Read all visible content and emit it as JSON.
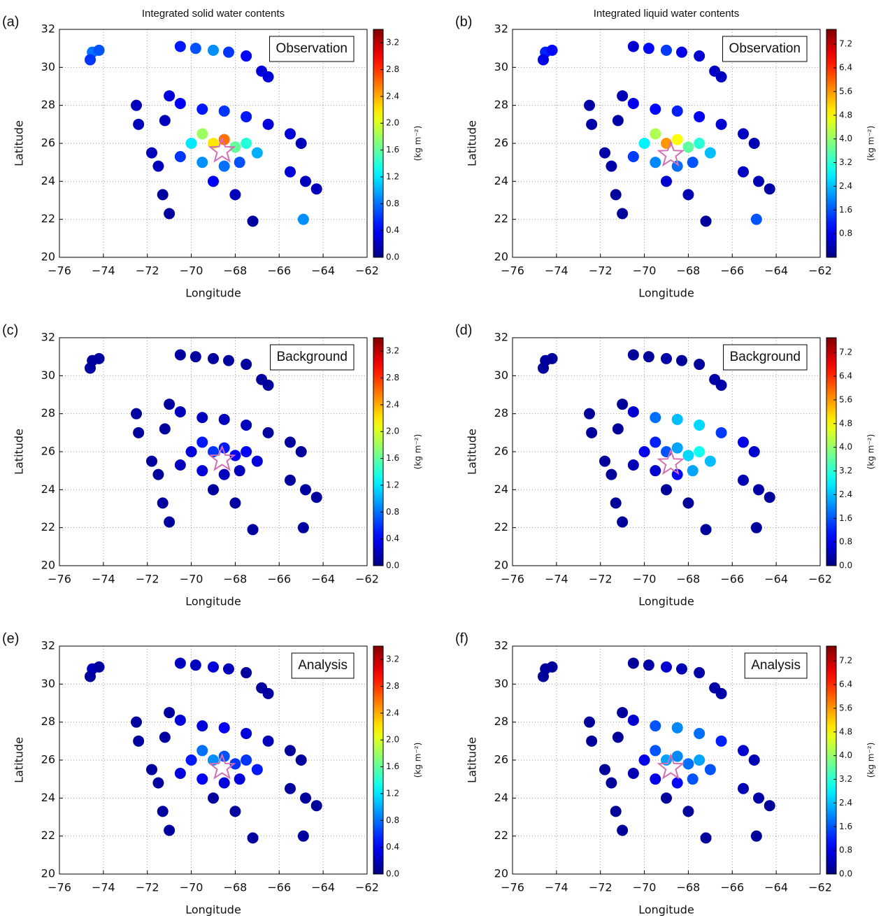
{
  "chart_data": [
    {
      "type": "scatter",
      "panel": "(a)",
      "title": "Integrated solid water contents",
      "annotation": "Observation",
      "xlabel": "Longitude",
      "ylabel": "Latitude",
      "colorbar_label": "(kg m⁻²)",
      "colormap": "jet",
      "grid": true,
      "xlim": [
        -76,
        -62
      ],
      "ylim": [
        20,
        32
      ],
      "xticks": [
        {
          "value": -76,
          "label": "−76"
        },
        {
          "value": -74,
          "label": "−74"
        },
        {
          "value": -72,
          "label": "−72"
        },
        {
          "value": -70,
          "label": "−70"
        },
        {
          "value": -68,
          "label": "−68"
        },
        {
          "value": -66,
          "label": "−66"
        },
        {
          "value": -64,
          "label": "−64"
        },
        {
          "value": -62,
          "label": "−62"
        }
      ],
      "yticks": [
        20,
        22,
        24,
        26,
        28,
        30,
        32
      ],
      "clim": [
        0,
        3.4
      ],
      "cticks": [
        {
          "value": 0,
          "label": "0.0"
        },
        0.4,
        0.8,
        1.2,
        1.6,
        {
          "value": 2,
          "label": "2.0"
        },
        2.4,
        2.8,
        3.2
      ],
      "center": {
        "x": -68.6,
        "y": 25.6
      },
      "x": [
        -74.5,
        -74.2,
        -74.6,
        -70.5,
        -69.8,
        -69.0,
        -68.3,
        -67.5,
        -66.8,
        -66.5,
        -72.5,
        -72.4,
        -71.0,
        -71.2,
        -71.8,
        -71.5,
        -70.5,
        -69.5,
        -68.5,
        -67.5,
        -66.5,
        -65.5,
        -65.0,
        -70.0,
        -69.5,
        -69.0,
        -68.5,
        -68.0,
        -67.5,
        -67.0,
        -69.5,
        -68.5,
        -67.8,
        -70.5,
        -69.0,
        -68.0,
        -65.5,
        -64.8,
        -64.3,
        -71.3,
        -71.0,
        -64.9,
        -67.2
      ],
      "y": [
        30.8,
        30.9,
        30.4,
        31.1,
        31.0,
        30.9,
        30.8,
        30.6,
        29.8,
        29.5,
        28.0,
        27.0,
        28.5,
        27.2,
        25.5,
        24.8,
        28.1,
        27.8,
        27.7,
        27.4,
        27.0,
        26.5,
        26.0,
        26.0,
        26.5,
        26.0,
        26.2,
        25.8,
        26.0,
        25.5,
        25.0,
        24.8,
        25.0,
        25.3,
        24.0,
        23.3,
        24.5,
        24.0,
        23.6,
        23.3,
        22.3,
        22.0,
        21.9
      ],
      "values": [
        0.8,
        0.7,
        0.6,
        0.5,
        0.7,
        0.9,
        0.6,
        0.4,
        0.3,
        0.3,
        0.2,
        0.2,
        0.3,
        0.2,
        0.2,
        0.2,
        0.4,
        0.5,
        0.6,
        0.5,
        0.3,
        0.3,
        0.2,
        1.2,
        1.8,
        2.2,
        2.6,
        1.6,
        1.4,
        1.0,
        0.9,
        0.8,
        0.7,
        0.6,
        0.4,
        0.2,
        0.3,
        0.2,
        0.2,
        0.1,
        0.1,
        0.9,
        0.1
      ]
    },
    {
      "type": "scatter",
      "panel": "(b)",
      "title": "Integrated liquid water contents",
      "annotation": "Observation",
      "xlabel": "Longitude",
      "ylabel": "Latitude",
      "colorbar_label": "(kg m⁻²)",
      "colormap": "jet",
      "grid": true,
      "xlim": [
        -76,
        -62
      ],
      "ylim": [
        20,
        32
      ],
      "xticks": [
        {
          "value": -76,
          "label": "−76"
        },
        {
          "value": -74,
          "label": "−74"
        },
        {
          "value": -72,
          "label": "−72"
        },
        {
          "value": -70,
          "label": "−70"
        },
        {
          "value": -68,
          "label": "−68"
        },
        {
          "value": -66,
          "label": "−66"
        },
        {
          "value": -64,
          "label": "−64"
        },
        {
          "value": -62,
          "label": "−62"
        }
      ],
      "yticks": [
        20,
        22,
        24,
        26,
        28,
        30,
        32
      ],
      "clim": [
        0,
        7.7
      ],
      "cticks": [
        0.8,
        1.6,
        2.4,
        3.2,
        {
          "value": 4,
          "label": "4.0"
        },
        4.8,
        5.6,
        6.4,
        7.2
      ],
      "center": {
        "x": -68.8,
        "y": 25.4
      },
      "x": [
        -74.5,
        -74.2,
        -74.6,
        -70.5,
        -69.8,
        -69.0,
        -68.3,
        -67.5,
        -66.8,
        -66.5,
        -72.5,
        -72.4,
        -71.0,
        -71.2,
        -71.8,
        -71.5,
        -70.5,
        -69.5,
        -68.5,
        -67.5,
        -66.5,
        -65.5,
        -65.0,
        -70.0,
        -69.5,
        -69.0,
        -68.5,
        -68.0,
        -67.5,
        -67.0,
        -69.5,
        -68.5,
        -67.8,
        -70.5,
        -69.0,
        -68.0,
        -65.5,
        -64.8,
        -64.3,
        -71.3,
        -71.0,
        -64.9,
        -67.2
      ],
      "y": [
        30.8,
        30.9,
        30.4,
        31.1,
        31.0,
        30.9,
        30.8,
        30.6,
        29.8,
        29.5,
        28.0,
        27.0,
        28.5,
        27.2,
        25.5,
        24.8,
        28.1,
        27.8,
        27.7,
        27.4,
        27.0,
        26.5,
        26.0,
        26.0,
        26.5,
        26.0,
        26.2,
        25.8,
        26.0,
        25.5,
        25.0,
        24.8,
        25.0,
        25.3,
        24.0,
        23.3,
        24.5,
        24.0,
        23.6,
        23.3,
        22.3,
        22.0,
        21.9
      ],
      "values": [
        1.2,
        1.0,
        0.8,
        0.6,
        1.0,
        1.4,
        0.8,
        0.6,
        0.5,
        0.5,
        0.3,
        0.3,
        0.4,
        0.3,
        0.3,
        0.3,
        0.8,
        1.0,
        1.2,
        0.9,
        0.6,
        0.5,
        0.4,
        2.8,
        4.2,
        5.6,
        4.8,
        3.6,
        3.2,
        2.4,
        2.0,
        1.8,
        1.6,
        1.4,
        0.6,
        0.4,
        0.5,
        0.4,
        0.3,
        0.2,
        0.2,
        1.6,
        0.2
      ]
    },
    {
      "type": "scatter",
      "panel": "(c)",
      "annotation": "Background",
      "xlabel": "Longitude",
      "ylabel": "Latitude",
      "colorbar_label": "(kg m⁻²)",
      "colormap": "jet",
      "grid": true,
      "xlim": [
        -76,
        -62
      ],
      "ylim": [
        20,
        32
      ],
      "xticks": [
        {
          "value": -76,
          "label": "−76"
        },
        {
          "value": -74,
          "label": "−74"
        },
        {
          "value": -72,
          "label": "−72"
        },
        {
          "value": -70,
          "label": "−70"
        },
        {
          "value": -68,
          "label": "−68"
        },
        {
          "value": -66,
          "label": "−66"
        },
        {
          "value": -64,
          "label": "−64"
        },
        {
          "value": -62,
          "label": "−62"
        }
      ],
      "yticks": [
        20,
        22,
        24,
        26,
        28,
        30,
        32
      ],
      "clim": [
        0,
        3.4
      ],
      "cticks": [
        {
          "value": 0,
          "label": "0.0"
        },
        0.4,
        0.8,
        1.2,
        1.6,
        {
          "value": 2,
          "label": "2.0"
        },
        2.4,
        2.8,
        3.2
      ],
      "center": {
        "x": -68.6,
        "y": 25.6
      },
      "x": [
        -74.5,
        -74.2,
        -74.6,
        -70.5,
        -69.8,
        -69.0,
        -68.3,
        -67.5,
        -66.8,
        -66.5,
        -72.5,
        -72.4,
        -71.0,
        -71.2,
        -71.8,
        -71.5,
        -70.5,
        -69.5,
        -68.5,
        -67.5,
        -66.5,
        -65.5,
        -65.0,
        -70.0,
        -69.5,
        -69.0,
        -68.5,
        -68.0,
        -67.5,
        -67.0,
        -69.5,
        -68.5,
        -67.8,
        -70.5,
        -69.0,
        -68.0,
        -65.5,
        -64.8,
        -64.3,
        -71.3,
        -71.0,
        -64.9,
        -67.2
      ],
      "y": [
        30.8,
        30.9,
        30.4,
        31.1,
        31.0,
        30.9,
        30.8,
        30.6,
        29.8,
        29.5,
        28.0,
        27.0,
        28.5,
        27.2,
        25.5,
        24.8,
        28.1,
        27.8,
        27.7,
        27.4,
        27.0,
        26.5,
        26.0,
        26.0,
        26.5,
        26.0,
        26.2,
        25.8,
        26.0,
        25.5,
        25.0,
        24.8,
        25.0,
        25.3,
        24.0,
        23.3,
        24.5,
        24.0,
        23.6,
        23.3,
        22.3,
        22.0,
        21.9
      ],
      "values": [
        0.1,
        0.1,
        0.1,
        0.1,
        0.1,
        0.1,
        0.1,
        0.1,
        0.1,
        0.1,
        0.1,
        0.1,
        0.1,
        0.1,
        0.1,
        0.1,
        0.2,
        0.2,
        0.2,
        0.2,
        0.1,
        0.1,
        0.1,
        0.3,
        0.5,
        0.6,
        0.5,
        0.4,
        0.4,
        0.3,
        0.3,
        0.2,
        0.2,
        0.2,
        0.1,
        0.1,
        0.1,
        0.1,
        0.1,
        0.1,
        0.1,
        0.1,
        0.1
      ]
    },
    {
      "type": "scatter",
      "panel": "(d)",
      "annotation": "Background",
      "xlabel": "Longitude",
      "ylabel": "Latitude",
      "colorbar_label": "(kg m⁻²)",
      "colormap": "jet",
      "grid": true,
      "xlim": [
        -76,
        -62
      ],
      "ylim": [
        20,
        32
      ],
      "xticks": [
        {
          "value": -76,
          "label": "−76"
        },
        {
          "value": -74,
          "label": "−74"
        },
        {
          "value": -72,
          "label": "−72"
        },
        {
          "value": -70,
          "label": "−70"
        },
        {
          "value": -68,
          "label": "−68"
        },
        {
          "value": -66,
          "label": "−66"
        },
        {
          "value": -64,
          "label": "−64"
        },
        {
          "value": -62,
          "label": "−62"
        }
      ],
      "yticks": [
        20,
        22,
        24,
        26,
        28,
        30,
        32
      ],
      "clim": [
        0,
        7.7
      ],
      "cticks": [
        {
          "value": 0,
          "label": "0.0"
        },
        0.8,
        1.6,
        2.4,
        3.2,
        {
          "value": 4,
          "label": "4.0"
        },
        4.8,
        5.6,
        6.4,
        7.2
      ],
      "center": {
        "x": -68.8,
        "y": 25.4
      },
      "x": [
        -74.5,
        -74.2,
        -74.6,
        -70.5,
        -69.8,
        -69.0,
        -68.3,
        -67.5,
        -66.8,
        -66.5,
        -72.5,
        -72.4,
        -71.0,
        -71.2,
        -71.8,
        -71.5,
        -70.5,
        -69.5,
        -68.5,
        -67.5,
        -66.5,
        -65.5,
        -65.0,
        -70.0,
        -69.5,
        -69.0,
        -68.5,
        -68.0,
        -67.5,
        -67.0,
        -69.5,
        -68.5,
        -67.8,
        -70.5,
        -69.0,
        -68.0,
        -65.5,
        -64.8,
        -64.3,
        -71.3,
        -71.0,
        -64.9,
        -67.2
      ],
      "y": [
        30.8,
        30.9,
        30.4,
        31.1,
        31.0,
        30.9,
        30.8,
        30.6,
        29.8,
        29.5,
        28.0,
        27.0,
        28.5,
        27.2,
        25.5,
        24.8,
        28.1,
        27.8,
        27.7,
        27.4,
        27.0,
        26.5,
        26.0,
        26.0,
        26.5,
        26.0,
        26.2,
        25.8,
        26.0,
        25.5,
        25.0,
        24.8,
        25.0,
        25.3,
        24.0,
        23.3,
        24.5,
        24.0,
        23.6,
        23.3,
        22.3,
        22.0,
        21.9
      ],
      "values": [
        0.2,
        0.2,
        0.2,
        0.2,
        0.2,
        0.3,
        0.2,
        0.2,
        0.3,
        0.3,
        0.2,
        0.2,
        0.2,
        0.2,
        0.2,
        0.2,
        0.6,
        1.8,
        2.4,
        2.6,
        1.4,
        0.8,
        0.6,
        0.8,
        1.2,
        1.6,
        2.2,
        2.6,
        3.0,
        2.4,
        0.6,
        1.0,
        2.2,
        0.4,
        0.2,
        0.2,
        0.4,
        0.3,
        0.2,
        0.2,
        0.2,
        0.2,
        0.2
      ]
    },
    {
      "type": "scatter",
      "panel": "(e)",
      "annotation": "Analysis",
      "xlabel": "Longitude",
      "ylabel": "Latitude",
      "colorbar_label": "(kg m⁻²)",
      "colormap": "jet",
      "grid": true,
      "xlim": [
        -76,
        -62
      ],
      "ylim": [
        20,
        32
      ],
      "xticks": [
        {
          "value": -76,
          "label": "−76"
        },
        {
          "value": -74,
          "label": "−74"
        },
        {
          "value": -72,
          "label": "−72"
        },
        {
          "value": -70,
          "label": "−70"
        },
        {
          "value": -68,
          "label": "−68"
        },
        {
          "value": -66,
          "label": "−66"
        },
        {
          "value": -64,
          "label": "−64"
        },
        {
          "value": -62,
          "label": "−62"
        }
      ],
      "yticks": [
        20,
        22,
        24,
        26,
        28,
        30,
        32
      ],
      "clim": [
        0,
        3.4
      ],
      "cticks": [
        {
          "value": 0,
          "label": "0.0"
        },
        0.4,
        0.8,
        1.2,
        1.6,
        {
          "value": 2,
          "label": "2.0"
        },
        2.4,
        2.8,
        3.2
      ],
      "center": {
        "x": -68.6,
        "y": 25.6
      },
      "x": [
        -74.5,
        -74.2,
        -74.6,
        -70.5,
        -69.8,
        -69.0,
        -68.3,
        -67.5,
        -66.8,
        -66.5,
        -72.5,
        -72.4,
        -71.0,
        -71.2,
        -71.8,
        -71.5,
        -70.5,
        -69.5,
        -68.5,
        -67.5,
        -66.5,
        -65.5,
        -65.0,
        -70.0,
        -69.5,
        -69.0,
        -68.5,
        -68.0,
        -67.5,
        -67.0,
        -69.5,
        -68.5,
        -67.8,
        -70.5,
        -69.0,
        -68.0,
        -65.5,
        -64.8,
        -64.3,
        -71.3,
        -71.0,
        -64.9,
        -67.2
      ],
      "y": [
        30.8,
        30.9,
        30.4,
        31.1,
        31.0,
        30.9,
        30.8,
        30.6,
        29.8,
        29.5,
        28.0,
        27.0,
        28.5,
        27.2,
        25.5,
        24.8,
        28.1,
        27.8,
        27.7,
        27.4,
        27.0,
        26.5,
        26.0,
        26.0,
        26.5,
        26.0,
        26.2,
        25.8,
        26.0,
        25.5,
        25.0,
        24.8,
        25.0,
        25.3,
        24.0,
        23.3,
        24.5,
        24.0,
        23.6,
        23.3,
        22.3,
        22.0,
        21.9
      ],
      "values": [
        0.2,
        0.1,
        0.1,
        0.2,
        0.2,
        0.3,
        0.2,
        0.1,
        0.1,
        0.1,
        0.1,
        0.1,
        0.1,
        0.1,
        0.1,
        0.1,
        0.3,
        0.3,
        0.4,
        0.3,
        0.2,
        0.1,
        0.1,
        0.5,
        0.8,
        0.9,
        0.7,
        0.6,
        0.6,
        0.5,
        0.4,
        0.3,
        0.3,
        0.3,
        0.1,
        0.1,
        0.1,
        0.1,
        0.1,
        0.1,
        0.1,
        0.1,
        0.1
      ]
    },
    {
      "type": "scatter",
      "panel": "(f)",
      "annotation": "Analysis",
      "xlabel": "Longitude",
      "ylabel": "Latitude",
      "colorbar_label": "(kg m⁻²)",
      "colormap": "jet",
      "grid": true,
      "xlim": [
        -76,
        -62
      ],
      "ylim": [
        20,
        32
      ],
      "xticks": [
        {
          "value": -76,
          "label": "−76"
        },
        {
          "value": -74,
          "label": "−74"
        },
        {
          "value": -72,
          "label": "−72"
        },
        {
          "value": -70,
          "label": "−70"
        },
        {
          "value": -68,
          "label": "−68"
        },
        {
          "value": -66,
          "label": "−66"
        },
        {
          "value": -64,
          "label": "−64"
        },
        {
          "value": -62,
          "label": "−62"
        }
      ],
      "yticks": [
        20,
        22,
        24,
        26,
        28,
        30,
        32
      ],
      "clim": [
        0,
        7.7
      ],
      "cticks": [
        {
          "value": 0,
          "label": "0.0"
        },
        0.8,
        1.6,
        2.4,
        3.2,
        {
          "value": 4,
          "label": "4.0"
        },
        4.8,
        5.6,
        6.4,
        7.2
      ],
      "center": {
        "x": -68.8,
        "y": 25.6
      },
      "x": [
        -74.5,
        -74.2,
        -74.6,
        -70.5,
        -69.8,
        -69.0,
        -68.3,
        -67.5,
        -66.8,
        -66.5,
        -72.5,
        -72.4,
        -71.0,
        -71.2,
        -71.8,
        -71.5,
        -70.5,
        -69.5,
        -68.5,
        -67.5,
        -66.5,
        -65.5,
        -65.0,
        -70.0,
        -69.5,
        -69.0,
        -68.5,
        -68.0,
        -67.5,
        -67.0,
        -69.5,
        -68.5,
        -67.8,
        -70.5,
        -69.0,
        -68.0,
        -65.5,
        -64.8,
        -64.3,
        -71.3,
        -71.0,
        -64.9,
        -67.2
      ],
      "y": [
        30.8,
        30.9,
        30.4,
        31.1,
        31.0,
        30.9,
        30.8,
        30.6,
        29.8,
        29.5,
        28.0,
        27.0,
        28.5,
        27.2,
        25.5,
        24.8,
        28.1,
        27.8,
        27.7,
        27.4,
        27.0,
        26.5,
        26.0,
        26.0,
        26.5,
        26.0,
        26.2,
        25.8,
        26.0,
        25.5,
        25.0,
        24.8,
        25.0,
        25.3,
        24.0,
        23.3,
        24.5,
        24.0,
        23.6,
        23.3,
        22.3,
        22.0,
        21.9
      ],
      "values": [
        0.2,
        0.2,
        0.2,
        0.2,
        0.3,
        0.6,
        0.4,
        0.3,
        0.3,
        0.3,
        0.2,
        0.2,
        0.2,
        0.2,
        0.2,
        0.2,
        0.6,
        1.6,
        2.0,
        1.8,
        1.2,
        0.6,
        0.4,
        0.8,
        1.6,
        2.2,
        2.0,
        1.8,
        2.2,
        1.6,
        0.8,
        1.0,
        1.6,
        0.4,
        0.2,
        0.2,
        0.4,
        0.3,
        0.2,
        0.2,
        0.2,
        0.2,
        0.2
      ]
    }
  ]
}
